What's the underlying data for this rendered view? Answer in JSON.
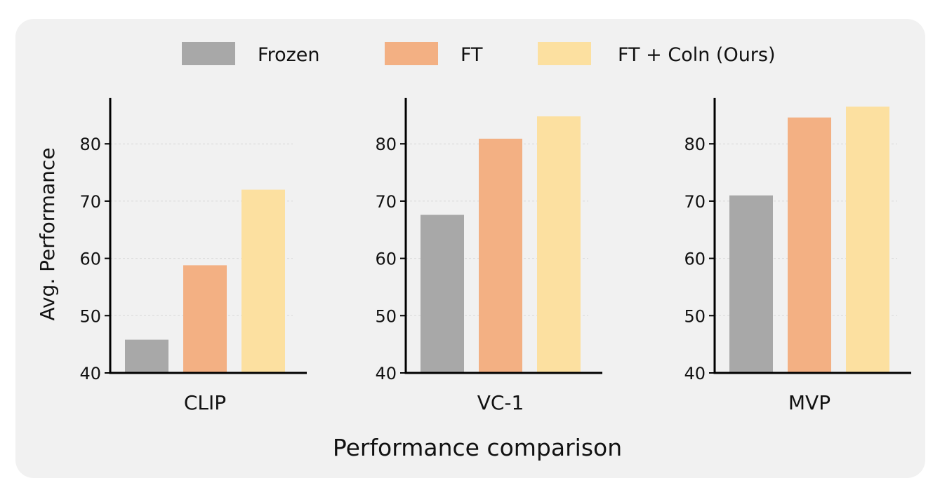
{
  "chart_data": {
    "type": "bar",
    "title": "",
    "xlabel": "Performance comparison",
    "ylabel": "Avg. Performance",
    "ylim": [
      40,
      88
    ],
    "yticks": [
      40,
      50,
      60,
      70,
      80
    ],
    "grid": true,
    "legend_position": "top-center",
    "series": [
      {
        "name": "Frozen",
        "color": "#a8a8a8"
      },
      {
        "name": "FT",
        "color": "#f3b083"
      },
      {
        "name": "FT + Coln (Ours)",
        "color": "#fce0a0"
      }
    ],
    "panels": [
      {
        "category": "CLIP",
        "values": [
          45.8,
          58.8,
          72.0
        ]
      },
      {
        "category": "VC-1",
        "values": [
          67.6,
          80.9,
          84.8
        ]
      },
      {
        "category": "MVP",
        "values": [
          71.0,
          84.6,
          86.5
        ]
      }
    ]
  }
}
